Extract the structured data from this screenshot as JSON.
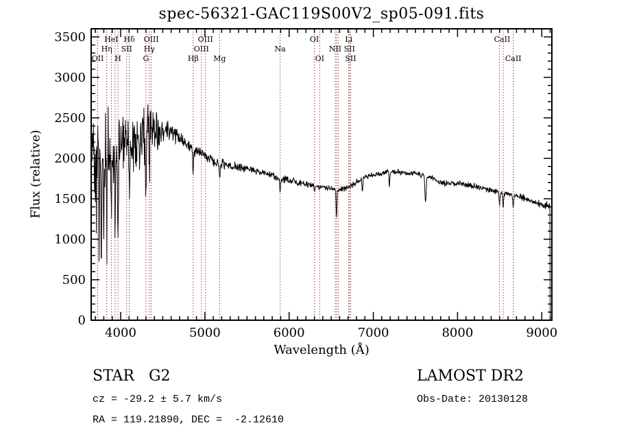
{
  "chart_data": {
    "type": "line",
    "title": "spec-56321-GAC119S00V2_sp05-091.fits",
    "xlabel": "Wavelength (Å)",
    "ylabel": "Flux (relative)",
    "xlim": [
      3650,
      9120
    ],
    "ylim": [
      0,
      3600
    ],
    "x_major_ticks": [
      4000,
      5000,
      6000,
      7000,
      8000,
      9000
    ],
    "x_minor_step": 100,
    "y_major_ticks": [
      0,
      500,
      1000,
      1500,
      2000,
      2500,
      3000,
      3500
    ],
    "y_minor_step": 100,
    "grid": false,
    "legend": "none",
    "line_color": "#000000",
    "marker_color": "#993333",
    "wl_start": 3660,
    "wl_end": 9096,
    "sample_step": 4,
    "seed": 20130128,
    "edge_flux": 40,
    "line_markers": [
      3727,
      3835,
      3889,
      3934,
      3968,
      4072,
      4102,
      4300,
      4340,
      4363,
      4861,
      4959,
      5007,
      5175,
      5893,
      6300,
      6363,
      6548,
      6563,
      6583,
      6708,
      6716,
      6731,
      8498,
      8542,
      8662
    ],
    "line_labels": [
      {
        "label": "HeI",
        "wl": 3889,
        "row": 0
      },
      {
        "label": "Hδ",
        "wl": 4102,
        "row": 0
      },
      {
        "label": "OIII",
        "wl": 4363,
        "row": 0
      },
      {
        "label": "OIII",
        "wl": 5007,
        "row": 0
      },
      {
        "label": "OI",
        "wl": 6300,
        "row": 0
      },
      {
        "label": "Li",
        "wl": 6708,
        "row": 0
      },
      {
        "label": "CaII",
        "wl": 8530,
        "row": 0
      },
      {
        "label": "Hη",
        "wl": 3835,
        "row": 1
      },
      {
        "label": "SII",
        "wl": 4072,
        "row": 1
      },
      {
        "label": "Hγ",
        "wl": 4340,
        "row": 1
      },
      {
        "label": "OIII",
        "wl": 4959,
        "row": 1
      },
      {
        "label": "Na",
        "wl": 5893,
        "row": 1
      },
      {
        "label": "NII",
        "wl": 6548,
        "row": 1
      },
      {
        "label": "SII",
        "wl": 6716,
        "row": 1
      },
      {
        "label": "OII",
        "wl": 3727,
        "row": 2
      },
      {
        "label": "H",
        "wl": 3968,
        "row": 2
      },
      {
        "label": "G",
        "wl": 4300,
        "row": 2
      },
      {
        "label": "Hβ",
        "wl": 4861,
        "row": 2
      },
      {
        "label": "Mg",
        "wl": 5175,
        "row": 2
      },
      {
        "label": "OI",
        "wl": 6363,
        "row": 2
      },
      {
        "label": "SII",
        "wl": 6731,
        "row": 2
      },
      {
        "label": "CaII",
        "wl": 8662,
        "row": 2
      }
    ],
    "continuum": [
      [
        3660,
        2150
      ],
      [
        3700,
        2100
      ],
      [
        3760,
        2050
      ],
      [
        3820,
        2050
      ],
      [
        3880,
        2050
      ],
      [
        3940,
        2050
      ],
      [
        4000,
        2120
      ],
      [
        4060,
        2180
      ],
      [
        4120,
        2230
      ],
      [
        4180,
        2280
      ],
      [
        4240,
        2280
      ],
      [
        4300,
        2320
      ],
      [
        4360,
        2420
      ],
      [
        4420,
        2320
      ],
      [
        4480,
        2280
      ],
      [
        4540,
        2350
      ],
      [
        4600,
        2330
      ],
      [
        4660,
        2290
      ],
      [
        4720,
        2230
      ],
      [
        4780,
        2160
      ],
      [
        4840,
        2120
      ],
      [
        4900,
        2090
      ],
      [
        4960,
        2060
      ],
      [
        5020,
        2020
      ],
      [
        5080,
        1970
      ],
      [
        5140,
        1950
      ],
      [
        5200,
        1930
      ],
      [
        5300,
        1905
      ],
      [
        5400,
        1890
      ],
      [
        5500,
        1870
      ],
      [
        5600,
        1845
      ],
      [
        5700,
        1815
      ],
      [
        5800,
        1785
      ],
      [
        5900,
        1750
      ],
      [
        6000,
        1725
      ],
      [
        6100,
        1705
      ],
      [
        6200,
        1685
      ],
      [
        6300,
        1660
      ],
      [
        6400,
        1640
      ],
      [
        6500,
        1620
      ],
      [
        6600,
        1610
      ],
      [
        6700,
        1645
      ],
      [
        6800,
        1705
      ],
      [
        6900,
        1765
      ],
      [
        7000,
        1795
      ],
      [
        7100,
        1815
      ],
      [
        7200,
        1835
      ],
      [
        7300,
        1835
      ],
      [
        7400,
        1815
      ],
      [
        7500,
        1805
      ],
      [
        7600,
        1785
      ],
      [
        7700,
        1755
      ],
      [
        7780,
        1700
      ],
      [
        7860,
        1690
      ],
      [
        7940,
        1690
      ],
      [
        8020,
        1690
      ],
      [
        8100,
        1670
      ],
      [
        8200,
        1655
      ],
      [
        8300,
        1635
      ],
      [
        8400,
        1605
      ],
      [
        8500,
        1575
      ],
      [
        8600,
        1555
      ],
      [
        8700,
        1535
      ],
      [
        8800,
        1505
      ],
      [
        8900,
        1465
      ],
      [
        9000,
        1435
      ],
      [
        9060,
        1410
      ],
      [
        9100,
        1390
      ]
    ],
    "noise_envelope": [
      [
        3660,
        650
      ],
      [
        3720,
        520
      ],
      [
        3800,
        450
      ],
      [
        3900,
        430
      ],
      [
        4000,
        400
      ],
      [
        4100,
        380
      ],
      [
        4200,
        370
      ],
      [
        4300,
        380
      ],
      [
        4380,
        330
      ],
      [
        4450,
        200
      ],
      [
        4520,
        120
      ],
      [
        4600,
        95
      ],
      [
        4700,
        80
      ],
      [
        4800,
        75
      ],
      [
        5000,
        62
      ],
      [
        5200,
        55
      ],
      [
        5500,
        48
      ],
      [
        5800,
        42
      ],
      [
        6100,
        38
      ],
      [
        6500,
        34
      ],
      [
        7000,
        30
      ],
      [
        7500,
        30
      ],
      [
        8000,
        32
      ],
      [
        8500,
        36
      ],
      [
        8900,
        42
      ],
      [
        9100,
        55
      ]
    ],
    "absorption_features": [
      {
        "wl": 3712,
        "depth": 900,
        "width": 7
      },
      {
        "wl": 3745,
        "depth": 1400,
        "width": 7
      },
      {
        "wl": 3770,
        "depth": 1100,
        "width": 7
      },
      {
        "wl": 3798,
        "depth": 1000,
        "width": 8
      },
      {
        "wl": 3835,
        "depth": 950,
        "width": 9
      },
      {
        "wl": 3889,
        "depth": 850,
        "width": 9
      },
      {
        "wl": 3934,
        "depth": 1050,
        "width": 11
      },
      {
        "wl": 3968,
        "depth": 950,
        "width": 11
      },
      {
        "wl": 4102,
        "depth": 850,
        "width": 10
      },
      {
        "wl": 4227,
        "depth": 500,
        "width": 8
      },
      {
        "wl": 4300,
        "depth": 700,
        "width": 13
      },
      {
        "wl": 4340,
        "depth": 650,
        "width": 10
      },
      {
        "wl": 4861,
        "depth": 330,
        "width": 11
      },
      {
        "wl": 5175,
        "depth": 160,
        "width": 14
      },
      {
        "wl": 5893,
        "depth": 175,
        "width": 11
      },
      {
        "wl": 6300,
        "depth": 80,
        "width": 8
      },
      {
        "wl": 6563,
        "depth": 330,
        "width": 10
      },
      {
        "wl": 6870,
        "depth": 150,
        "width": 12
      },
      {
        "wl": 7190,
        "depth": 200,
        "width": 8
      },
      {
        "wl": 7620,
        "depth": 330,
        "width": 14
      },
      {
        "wl": 8498,
        "depth": 140,
        "width": 10
      },
      {
        "wl": 8542,
        "depth": 170,
        "width": 10
      },
      {
        "wl": 8662,
        "depth": 150,
        "width": 10
      }
    ]
  },
  "annotations": {
    "class_label": "STAR   G2",
    "cz_label": "cz = -29.2 ± 5.7 km/s",
    "radec_label": "RA = 119.21890, DEC =  -2.12610",
    "survey_label": "LAMOST DR2",
    "obsdate_label": "Obs-Date: 20130128"
  }
}
